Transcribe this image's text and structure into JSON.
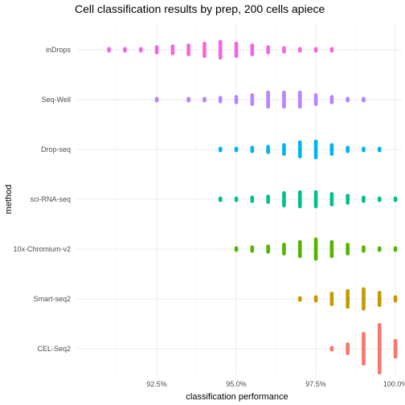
{
  "chart_data": {
    "type": "scatter",
    "title": "Cell classification results by prep, 200 cells apiece",
    "xlabel": "classification performance",
    "ylabel": "method",
    "xlim": [
      0.9,
      1.002
    ],
    "x_ticks": [
      0.925,
      0.95,
      0.975,
      1.0
    ],
    "x_tick_labels": [
      "92.5%",
      "95.0%",
      "97.5%",
      "100.0%"
    ],
    "grid": true,
    "legend": "none",
    "categories": [
      "inDrops",
      "Seq-Well",
      "Drop-seq",
      "sci-RNA-seq",
      "10x-Chromium-v2",
      "Smart-seq2",
      "CEL-Seq2"
    ],
    "series": [
      {
        "category": "inDrops",
        "color": "#F564E3",
        "x": [
          0.91,
          0.915,
          0.92,
          0.925,
          0.93,
          0.935,
          0.94,
          0.945,
          0.95,
          0.955,
          0.96,
          0.965,
          0.97,
          0.975,
          0.98
        ],
        "counts": [
          2,
          2,
          2,
          4,
          5,
          6,
          8,
          10,
          8,
          6,
          4,
          3,
          2,
          2,
          2
        ]
      },
      {
        "category": "Seq-Well",
        "color": "#B983FF",
        "x": [
          0.925,
          0.935,
          0.94,
          0.945,
          0.95,
          0.955,
          0.96,
          0.965,
          0.97,
          0.975,
          0.98,
          0.985,
          0.99
        ],
        "counts": [
          2,
          2,
          2,
          3,
          4,
          6,
          9,
          9,
          9,
          6,
          4,
          2,
          2
        ]
      },
      {
        "category": "Drop-seq",
        "color": "#00B4EF",
        "x": [
          0.945,
          0.95,
          0.955,
          0.96,
          0.965,
          0.97,
          0.975,
          0.98,
          0.985,
          0.99,
          0.995
        ],
        "counts": [
          2,
          2,
          3,
          4,
          6,
          9,
          10,
          6,
          3,
          2,
          2
        ]
      },
      {
        "category": "sci-RNA-seq",
        "color": "#00BF8B",
        "x": [
          0.945,
          0.95,
          0.955,
          0.96,
          0.965,
          0.97,
          0.975,
          0.98,
          0.985,
          0.99,
          0.995,
          1.0
        ],
        "counts": [
          2,
          2,
          3,
          4,
          8,
          9,
          9,
          7,
          5,
          3,
          2,
          2
        ]
      },
      {
        "category": "10x-Chromium-v2",
        "color": "#53B400",
        "x": [
          0.95,
          0.955,
          0.96,
          0.965,
          0.97,
          0.975,
          0.98,
          0.985,
          0.99,
          0.995,
          1.0
        ],
        "counts": [
          2,
          3,
          4,
          6,
          9,
          12,
          9,
          6,
          3,
          2,
          2
        ]
      },
      {
        "category": "Smart-seq2",
        "color": "#C49A00",
        "x": [
          0.97,
          0.975,
          0.98,
          0.985,
          0.99,
          0.995,
          1.0
        ],
        "counts": [
          2,
          3,
          7,
          10,
          12,
          8,
          3
        ]
      },
      {
        "category": "CEL-Seq2",
        "color": "#F8766D",
        "x": [
          0.98,
          0.985,
          0.99,
          0.995,
          1.0
        ],
        "counts": [
          2,
          6,
          18,
          28,
          10
        ]
      }
    ]
  }
}
